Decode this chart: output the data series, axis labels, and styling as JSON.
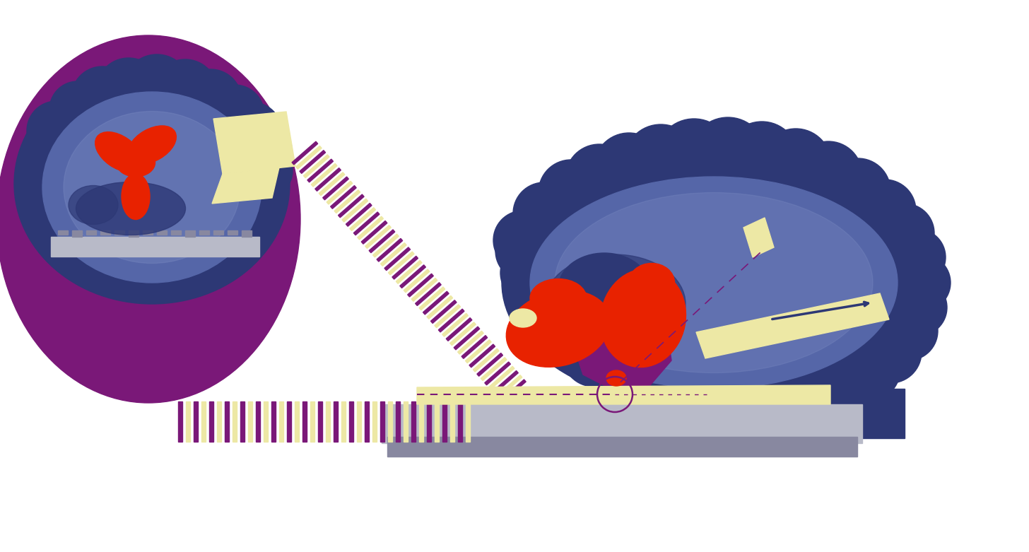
{
  "bg_color": "#ffffff",
  "purple": "#7a1878",
  "dark_blue": "#2d3875",
  "mid_blue": "#5566a8",
  "light_blue": "#7888c0",
  "red": "#e82200",
  "cream": "#ede8a5",
  "gray": "#b8bac8",
  "dark_gray": "#8888a0",
  "stripe_purple": "#7a1878",
  "stripe_cream": "#ede8a5"
}
